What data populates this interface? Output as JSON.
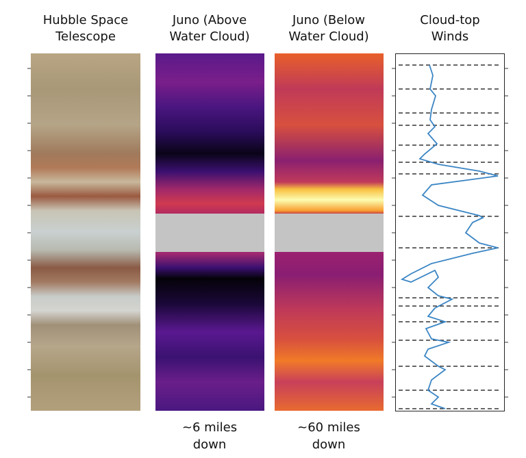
{
  "panels": [
    {
      "title": [
        "Hubble Space",
        "Telescope"
      ]
    },
    {
      "title": [
        "Juno (Above",
        "Water Cloud)"
      ],
      "caption": [
        "~6 miles",
        "down"
      ]
    },
    {
      "title": [
        "Juno (Below",
        "Water Cloud)"
      ],
      "caption": [
        "~60 miles",
        "down"
      ]
    },
    {
      "title": [
        "Cloud-top",
        "Winds"
      ]
    }
  ]
}
